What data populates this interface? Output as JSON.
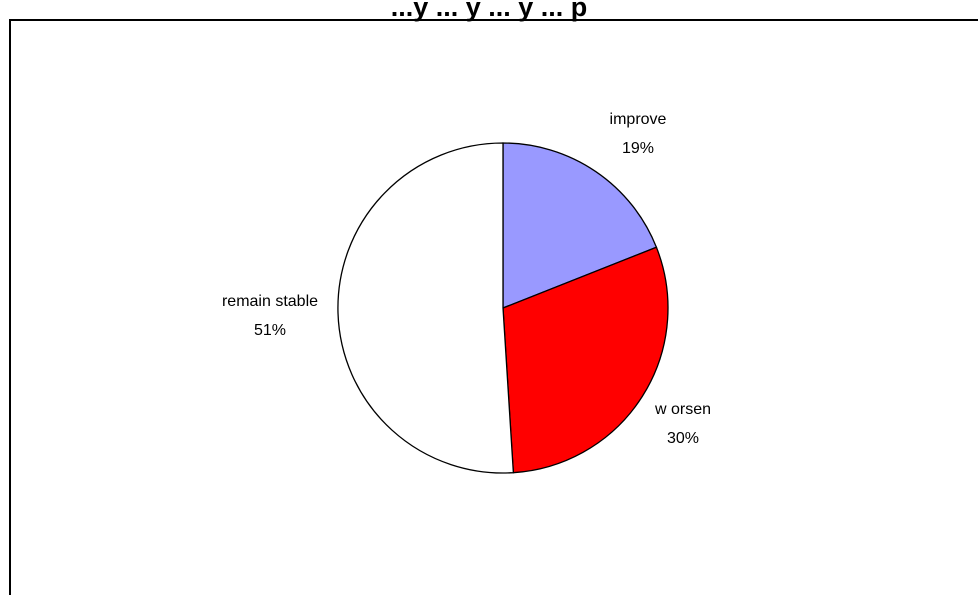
{
  "chart_data": {
    "type": "pie",
    "title": "...y ... y ... y ... p",
    "slices": [
      {
        "label": "improve",
        "value": 19,
        "value_label": "19%",
        "color": "#9999ff"
      },
      {
        "label": "w orsen",
        "value": 30,
        "value_label": "30%",
        "color": "#ff0000"
      },
      {
        "label": "remain stable",
        "value": 51,
        "value_label": "51%",
        "color": "#ffffff"
      }
    ],
    "start_angle": "12 o'clock",
    "direction": "clockwise",
    "legend": "none",
    "grid": false
  }
}
